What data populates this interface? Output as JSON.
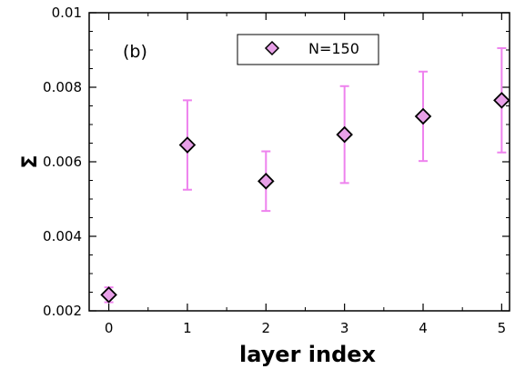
{
  "chart_data": {
    "type": "scatter",
    "panel_label": "(b)",
    "xlabel": "layer index",
    "ylabel": "Ʃ",
    "xlim": [
      -0.25,
      5.1
    ],
    "ylim": [
      0.002,
      0.01
    ],
    "x_ticks": [
      0,
      1,
      2,
      3,
      4,
      5
    ],
    "x_tick_labels": [
      "0",
      "1",
      "2",
      "3",
      "4",
      "5"
    ],
    "y_ticks": [
      0.002,
      0.004,
      0.006,
      0.008,
      0.01
    ],
    "y_tick_labels": [
      "0.002",
      "0.004",
      "0.006",
      "0.008",
      "0.01"
    ],
    "grid": false,
    "legend_position": "top-center",
    "series": [
      {
        "name": "N=150",
        "marker": "diamond",
        "marker_color": "#e8a0e8",
        "errorbar_color": "#ee82ee",
        "x": [
          0,
          1,
          2,
          3,
          4,
          5
        ],
        "y": [
          0.00243,
          0.00645,
          0.00548,
          0.00673,
          0.00722,
          0.00765
        ],
        "yerr": [
          0.0002,
          0.0012,
          0.0008,
          0.0013,
          0.0012,
          0.0014
        ]
      }
    ]
  }
}
